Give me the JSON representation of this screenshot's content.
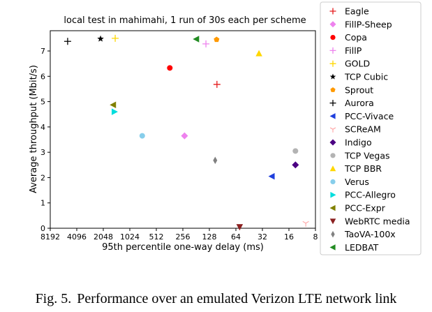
{
  "figure": {
    "caption_label": "Fig. 5.",
    "caption_text": "Performance over an emulated Verizon LTE network link"
  },
  "chart_data": {
    "type": "scatter",
    "title": "local test in mahimahi, 1 run of 30s each per scheme",
    "xlabel": "95th percentile one-way delay (ms)",
    "ylabel": "Average throughput (Mbit/s)",
    "x_scale": "log2",
    "x_reversed": true,
    "xlim": [
      8192,
      8
    ],
    "ylim": [
      0,
      7.8
    ],
    "x_ticks": [
      8192,
      4096,
      2048,
      1024,
      512,
      256,
      128,
      64,
      32,
      16,
      8
    ],
    "y_ticks": [
      0,
      1,
      2,
      3,
      4,
      5,
      6,
      7
    ],
    "grid": false,
    "legend_position": "outside-right",
    "series": [
      {
        "name": "Eagle",
        "marker": "plus",
        "color": "#e41a1c",
        "x": 105,
        "y": 5.68
      },
      {
        "name": "FillP-Sheep",
        "marker": "diamond",
        "color": "#ee82ee",
        "x": 245,
        "y": 3.65
      },
      {
        "name": "Copa",
        "marker": "circle",
        "color": "#ff0000",
        "x": 360,
        "y": 6.33
      },
      {
        "name": "FillP",
        "marker": "plus",
        "color": "#ee82ee",
        "x": 140,
        "y": 7.28
      },
      {
        "name": "GOLD",
        "marker": "plus",
        "color": "#ffd700",
        "x": 1500,
        "y": 7.5
      },
      {
        "name": "TCP Cubic",
        "marker": "star",
        "color": "#000000",
        "x": 2200,
        "y": 7.48
      },
      {
        "name": "Sprout",
        "marker": "pentagon",
        "color": "#ff9900",
        "x": 106,
        "y": 7.45
      },
      {
        "name": "Aurora",
        "marker": "plus",
        "color": "#000000",
        "x": 5200,
        "y": 7.38
      },
      {
        "name": "PCC-Vivace",
        "marker": "triangle-left",
        "color": "#1f3fdd",
        "x": 25,
        "y": 2.05
      },
      {
        "name": "SCReAM",
        "marker": "tri-down",
        "color": "#ffaaaa",
        "x": 10.3,
        "y": 0.2
      },
      {
        "name": "Indigo",
        "marker": "diamond",
        "color": "#4b0082",
        "x": 13.5,
        "y": 2.5
      },
      {
        "name": "TCP Vegas",
        "marker": "circle",
        "color": "#b3b3b3",
        "x": 13.5,
        "y": 3.05
      },
      {
        "name": "TCP BBR",
        "marker": "triangle-up",
        "color": "#ffd700",
        "x": 35,
        "y": 6.9
      },
      {
        "name": "Verus",
        "marker": "circle",
        "color": "#87ceeb",
        "x": 740,
        "y": 3.65
      },
      {
        "name": "PCC-Allegro",
        "marker": "triangle-right",
        "color": "#00dddd",
        "x": 1530,
        "y": 4.6
      },
      {
        "name": "PCC-Expr",
        "marker": "triangle-left",
        "color": "#808000",
        "x": 1580,
        "y": 4.87
      },
      {
        "name": "WebRTC media",
        "marker": "triangle-down",
        "color": "#8b2020",
        "x": 58,
        "y": 0.05
      },
      {
        "name": "TaoVA-100x",
        "marker": "thin-diamond",
        "color": "#808080",
        "x": 110,
        "y": 2.68
      },
      {
        "name": "LEDBAT",
        "marker": "triangle-left",
        "color": "#228b22",
        "x": 180,
        "y": 7.47
      }
    ]
  }
}
